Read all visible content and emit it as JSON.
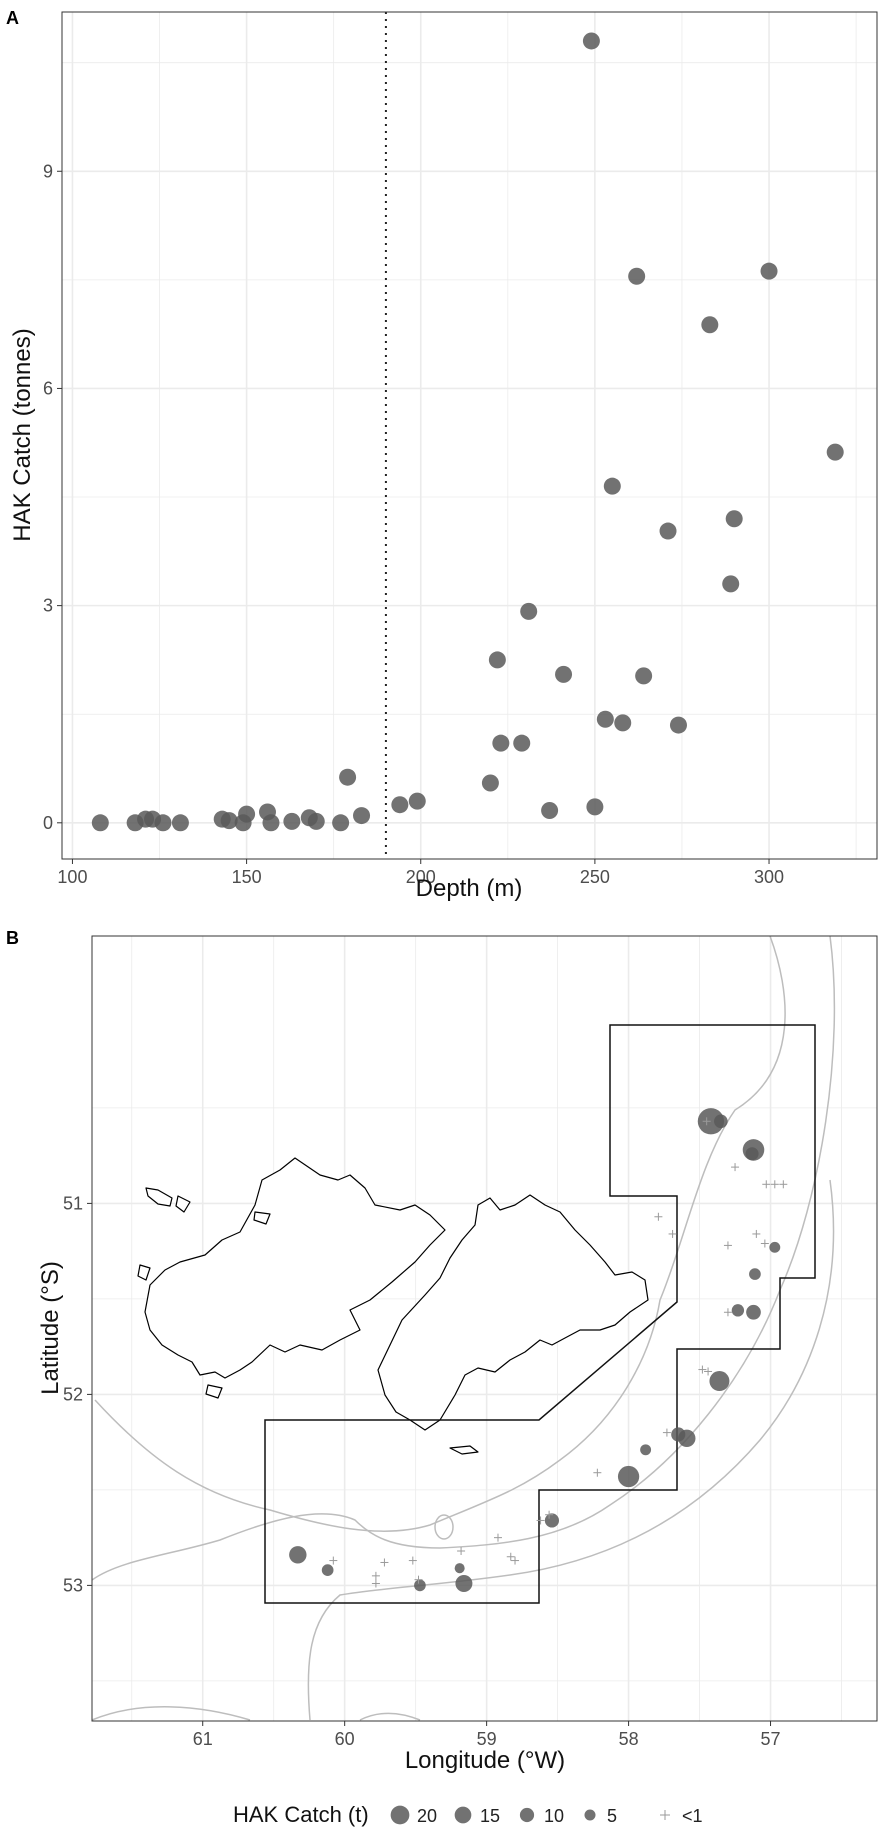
{
  "chart_data": [
    {
      "panel": "A",
      "type": "scatter",
      "xlabel": "Depth (m)",
      "ylabel": "HAK Catch (tonnes)",
      "xlim": [
        97,
        331
      ],
      "ylim": [
        -0.5,
        11.2
      ],
      "xticks": [
        100,
        150,
        200,
        250,
        300
      ],
      "yticks": [
        0,
        3,
        6,
        9
      ],
      "grid": true,
      "reference_line": {
        "x": 190,
        "style": "dotted"
      },
      "points": [
        {
          "x": 108,
          "y": 0
        },
        {
          "x": 118,
          "y": 0
        },
        {
          "x": 121,
          "y": 0.05
        },
        {
          "x": 123,
          "y": 0.05
        },
        {
          "x": 126,
          "y": 0
        },
        {
          "x": 131,
          "y": 0
        },
        {
          "x": 143,
          "y": 0.05
        },
        {
          "x": 145,
          "y": 0.03
        },
        {
          "x": 149,
          "y": 0
        },
        {
          "x": 150,
          "y": 0.12
        },
        {
          "x": 156,
          "y": 0.15
        },
        {
          "x": 157,
          "y": 0
        },
        {
          "x": 163,
          "y": 0.02
        },
        {
          "x": 168,
          "y": 0.07
        },
        {
          "x": 170,
          "y": 0.02
        },
        {
          "x": 177,
          "y": 0
        },
        {
          "x": 179,
          "y": 0.63
        },
        {
          "x": 183,
          "y": 0.1
        },
        {
          "x": 194,
          "y": 0.25
        },
        {
          "x": 199,
          "y": 0.3
        },
        {
          "x": 220,
          "y": 0.55
        },
        {
          "x": 222,
          "y": 2.25
        },
        {
          "x": 223,
          "y": 1.1
        },
        {
          "x": 229,
          "y": 1.1
        },
        {
          "x": 231,
          "y": 2.92
        },
        {
          "x": 237,
          "y": 0.17
        },
        {
          "x": 241,
          "y": 2.05
        },
        {
          "x": 249,
          "y": 10.8
        },
        {
          "x": 250,
          "y": 0.22
        },
        {
          "x": 253,
          "y": 1.43
        },
        {
          "x": 255,
          "y": 4.65
        },
        {
          "x": 258,
          "y": 1.38
        },
        {
          "x": 262,
          "y": 7.55
        },
        {
          "x": 264,
          "y": 2.03
        },
        {
          "x": 271,
          "y": 4.03
        },
        {
          "x": 274,
          "y": 1.35
        },
        {
          "x": 283,
          "y": 6.88
        },
        {
          "x": 289,
          "y": 3.3
        },
        {
          "x": 290,
          "y": 4.2
        },
        {
          "x": 300,
          "y": 7.62
        },
        {
          "x": 319,
          "y": 5.12
        }
      ]
    },
    {
      "panel": "B",
      "type": "scatter",
      "xlabel": "Longitude (°W)",
      "ylabel": "Latitude (°S)",
      "xticks": [
        61,
        60,
        59,
        58,
        57
      ],
      "yticks": [
        51,
        52,
        53
      ],
      "xlim": [
        61.78,
        56.25
      ],
      "ylim": [
        53.71,
        49.6
      ],
      "grid": true,
      "legend": {
        "title": "HAK Catch (t)",
        "position": "bottom",
        "entries": [
          {
            "label": "20",
            "size": 20
          },
          {
            "label": "15",
            "size": 15
          },
          {
            "label": "10",
            "size": 10
          },
          {
            "label": "5",
            "size": 5
          },
          {
            "label": "<1",
            "size": 0
          }
        ]
      },
      "catch_points": [
        {
          "lon": 57.42,
          "lat": 50.57,
          "catch": 22.7
        },
        {
          "lon": 57.35,
          "lat": 50.57,
          "catch": 4
        },
        {
          "lon": 57.12,
          "lat": 50.72,
          "catch": 13.9
        },
        {
          "lon": 57.13,
          "lat": 50.74,
          "catch": 3.5
        },
        {
          "lon": 56.97,
          "lat": 51.23,
          "catch": 2
        },
        {
          "lon": 57.11,
          "lat": 51.37,
          "catch": 2.5
        },
        {
          "lon": 57.23,
          "lat": 51.56,
          "catch": 3
        },
        {
          "lon": 57.12,
          "lat": 51.57,
          "catch": 5
        },
        {
          "lon": 57.36,
          "lat": 51.93,
          "catch": 11.5
        },
        {
          "lon": 57.65,
          "lat": 52.21,
          "catch": 4.5
        },
        {
          "lon": 57.59,
          "lat": 52.23,
          "catch": 8
        },
        {
          "lon": 57.88,
          "lat": 52.29,
          "catch": 2
        },
        {
          "lon": 58.0,
          "lat": 52.43,
          "catch": 13.5
        },
        {
          "lon": 58.54,
          "lat": 52.66,
          "catch": 4.5
        },
        {
          "lon": 60.33,
          "lat": 52.84,
          "catch": 8
        },
        {
          "lon": 60.12,
          "lat": 52.92,
          "catch": 2.5
        },
        {
          "lon": 59.47,
          "lat": 53.0,
          "catch": 2.5
        },
        {
          "lon": 59.16,
          "lat": 52.99,
          "catch": 7.5
        },
        {
          "lon": 59.19,
          "lat": 52.91,
          "catch": 1.5
        }
      ],
      "small_catch_points": [
        {
          "lon": 57.45,
          "lat": 50.57
        },
        {
          "lon": 57.25,
          "lat": 50.81
        },
        {
          "lon": 57.03,
          "lat": 50.9
        },
        {
          "lon": 56.97,
          "lat": 50.9
        },
        {
          "lon": 56.91,
          "lat": 50.9
        },
        {
          "lon": 57.79,
          "lat": 51.07
        },
        {
          "lon": 57.69,
          "lat": 51.16
        },
        {
          "lon": 57.1,
          "lat": 51.16
        },
        {
          "lon": 57.04,
          "lat": 51.21
        },
        {
          "lon": 57.3,
          "lat": 51.22
        },
        {
          "lon": 57.3,
          "lat": 51.57
        },
        {
          "lon": 57.48,
          "lat": 51.87
        },
        {
          "lon": 57.44,
          "lat": 51.88
        },
        {
          "lon": 57.73,
          "lat": 52.2
        },
        {
          "lon": 58.22,
          "lat": 52.41
        },
        {
          "lon": 58.56,
          "lat": 52.63
        },
        {
          "lon": 58.62,
          "lat": 52.66
        },
        {
          "lon": 58.92,
          "lat": 52.75
        },
        {
          "lon": 58.83,
          "lat": 52.85
        },
        {
          "lon": 58.8,
          "lat": 52.87
        },
        {
          "lon": 59.18,
          "lat": 52.82
        },
        {
          "lon": 59.52,
          "lat": 52.87
        },
        {
          "lon": 59.48,
          "lat": 52.97
        },
        {
          "lon": 59.72,
          "lat": 52.88
        },
        {
          "lon": 59.78,
          "lat": 52.95
        },
        {
          "lon": 59.78,
          "lat": 52.99
        },
        {
          "lon": 60.08,
          "lat": 52.87
        }
      ]
    }
  ],
  "colors": {
    "point": "#595959",
    "panel_border": "#333333",
    "grid": "#ebebeb",
    "contour": "#bdbdbd",
    "coast": "#000000",
    "zone_box": "#111111"
  }
}
